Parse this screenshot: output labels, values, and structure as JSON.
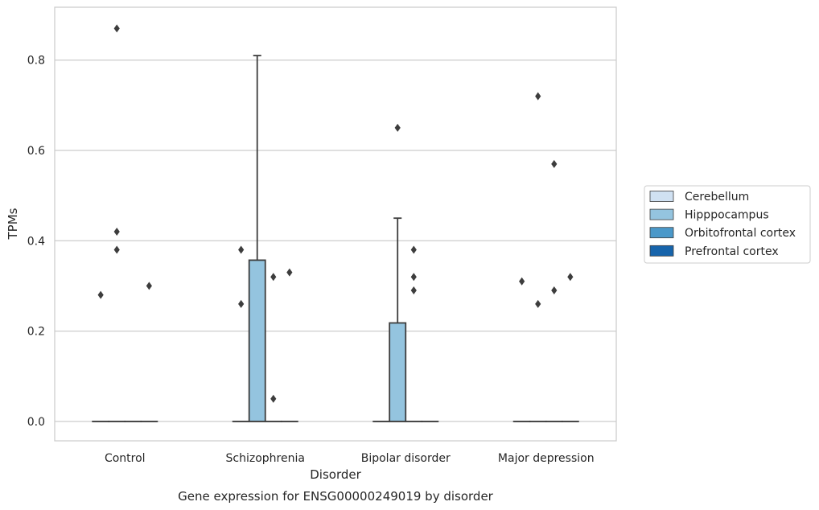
{
  "chart_data": {
    "type": "box",
    "xlabel": "Disorder",
    "ylabel": "TPMs",
    "caption": "Gene expression for ENSG00000249019 by disorder",
    "ylim": [
      -0.043,
      0.917
    ],
    "yticks": [
      "0.0",
      "0.2",
      "0.4",
      "0.6",
      "0.8"
    ],
    "ytick_values": [
      0.0,
      0.2,
      0.4,
      0.6,
      0.8
    ],
    "grid": "horizontal",
    "legend_position": "right",
    "categories": [
      "Control",
      "Schizophrenia",
      "Bipolar disorder",
      "Major depression"
    ],
    "series": [
      {
        "name": "Cerebellum",
        "color": "#d0e1f2",
        "boxes": [
          {
            "category": "Control",
            "q1": 0.0,
            "median": 0.0,
            "q3": 0.0,
            "whisker_low": 0.0,
            "whisker_high": 0.0,
            "outliers": [
              0.28
            ]
          },
          {
            "category": "Schizophrenia",
            "q1": 0.0,
            "median": 0.0,
            "q3": 0.0,
            "whisker_low": 0.0,
            "whisker_high": 0.0,
            "outliers": [
              0.26,
              0.38
            ]
          },
          {
            "category": "Bipolar disorder",
            "q1": 0.0,
            "median": 0.0,
            "q3": 0.0,
            "whisker_low": 0.0,
            "whisker_high": 0.0,
            "outliers": []
          },
          {
            "category": "Major depression",
            "q1": 0.0,
            "median": 0.0,
            "q3": 0.0,
            "whisker_low": 0.0,
            "whisker_high": 0.0,
            "outliers": [
              0.31
            ]
          }
        ]
      },
      {
        "name": "Hipppocampus",
        "color": "#94c4df",
        "boxes": [
          {
            "category": "Control",
            "q1": 0.0,
            "median": 0.0,
            "q3": 0.0,
            "whisker_low": 0.0,
            "whisker_high": 0.0,
            "outliers": [
              0.87,
              0.42,
              0.38
            ]
          },
          {
            "category": "Schizophrenia",
            "q1": 0.0,
            "median": 0.0,
            "q3": 0.357,
            "whisker_low": 0.0,
            "whisker_high": 0.81,
            "outliers": []
          },
          {
            "category": "Bipolar disorder",
            "q1": 0.0,
            "median": 0.0,
            "q3": 0.218,
            "whisker_low": 0.0,
            "whisker_high": 0.45,
            "outliers": [
              0.65
            ]
          },
          {
            "category": "Major depression",
            "q1": 0.0,
            "median": 0.0,
            "q3": 0.0,
            "whisker_low": 0.0,
            "whisker_high": 0.0,
            "outliers": [
              0.72,
              0.26
            ]
          }
        ]
      },
      {
        "name": "Orbitofrontal cortex",
        "color": "#4a98c9",
        "boxes": [
          {
            "category": "Control",
            "q1": 0.0,
            "median": 0.0,
            "q3": 0.0,
            "whisker_low": 0.0,
            "whisker_high": 0.0,
            "outliers": []
          },
          {
            "category": "Schizophrenia",
            "q1": 0.0,
            "median": 0.0,
            "q3": 0.0,
            "whisker_low": 0.0,
            "whisker_high": 0.0,
            "outliers": [
              0.32,
              0.05
            ]
          },
          {
            "category": "Bipolar disorder",
            "q1": 0.0,
            "median": 0.0,
            "q3": 0.0,
            "whisker_low": 0.0,
            "whisker_high": 0.0,
            "outliers": [
              0.38,
              0.32,
              0.29
            ]
          },
          {
            "category": "Major depression",
            "q1": 0.0,
            "median": 0.0,
            "q3": 0.0,
            "whisker_low": 0.0,
            "whisker_high": 0.0,
            "outliers": [
              0.57,
              0.29
            ]
          }
        ]
      },
      {
        "name": "Prefrontal cortex",
        "color": "#1764ab",
        "boxes": [
          {
            "category": "Control",
            "q1": 0.0,
            "median": 0.0,
            "q3": 0.0,
            "whisker_low": 0.0,
            "whisker_high": 0.0,
            "outliers": [
              0.3
            ]
          },
          {
            "category": "Schizophrenia",
            "q1": 0.0,
            "median": 0.0,
            "q3": 0.0,
            "whisker_low": 0.0,
            "whisker_high": 0.0,
            "outliers": [
              0.33
            ]
          },
          {
            "category": "Bipolar disorder",
            "q1": 0.0,
            "median": 0.0,
            "q3": 0.0,
            "whisker_low": 0.0,
            "whisker_high": 0.0,
            "outliers": []
          },
          {
            "category": "Major depression",
            "q1": 0.0,
            "median": 0.0,
            "q3": 0.0,
            "whisker_low": 0.0,
            "whisker_high": 0.0,
            "outliers": [
              0.32
            ]
          }
        ]
      }
    ]
  }
}
